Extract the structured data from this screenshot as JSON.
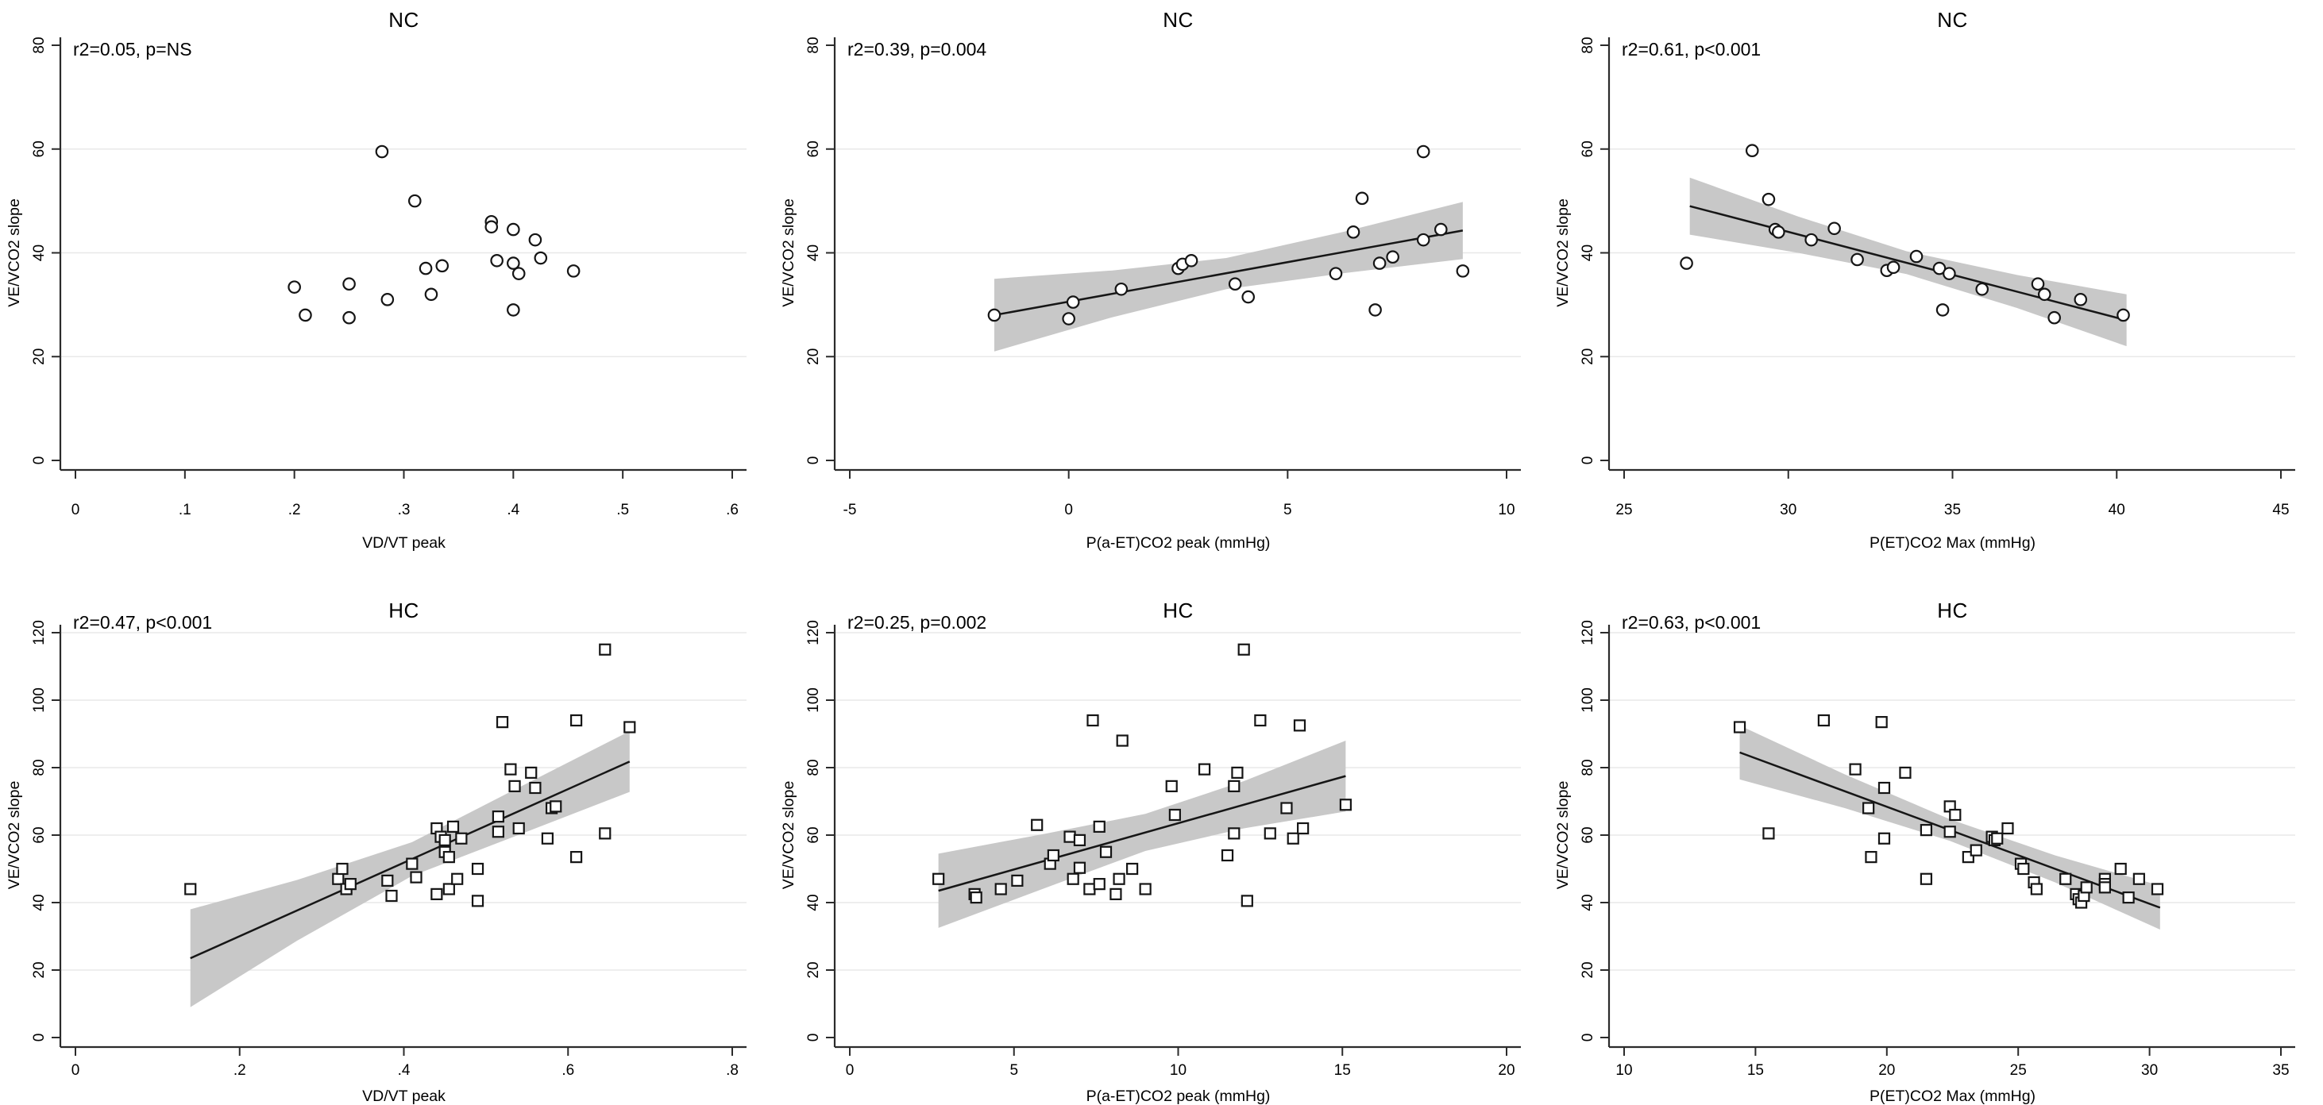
{
  "figure": {
    "description": "Six-panel scatter plot figure: VE/VCO2 slope vs ventilatory gas-exchange variables for NC (top row, circles) and HC (bottom row, squares) groups, with linear fit and 95% CI bands",
    "background": "#ffffff"
  },
  "colors": {
    "marker_stroke": "#151515",
    "marker_fill": "#ffffff",
    "grid": "#e8e8e8",
    "axis": "#2b2b2b",
    "fit_line": "#161616",
    "ci_band": "#c8c8c8",
    "text": "#000000"
  },
  "chart_data": [
    {
      "type": "scatter",
      "group": "NC",
      "title": "NC",
      "annotation": "r2=0.05, p=NS",
      "r_squared": 0.05,
      "p_value": "NS",
      "marker": "circle",
      "xlabel": "VD/VT peak",
      "ylabel": "VE/VCO2 slope",
      "xlim": [
        0,
        0.6
      ],
      "xtick_values": [
        0,
        0.1,
        0.2,
        0.3,
        0.4,
        0.5,
        0.6
      ],
      "xtick_labels": [
        "0",
        ".1",
        ".2",
        ".3",
        ".4",
        ".5",
        ".6"
      ],
      "ylim": [
        0,
        80
      ],
      "ytick_values": [
        0,
        20,
        40,
        60,
        80
      ],
      "ytick_labels": [
        "0",
        "20",
        "40",
        "60",
        "80"
      ],
      "grid_y": [
        20,
        40,
        60
      ],
      "points": [
        [
          0.2,
          33.4
        ],
        [
          0.21,
          28
        ],
        [
          0.25,
          34
        ],
        [
          0.25,
          27.5
        ],
        [
          0.28,
          59.5
        ],
        [
          0.285,
          31
        ],
        [
          0.31,
          50
        ],
        [
          0.32,
          37
        ],
        [
          0.325,
          32
        ],
        [
          0.335,
          37.5
        ],
        [
          0.38,
          46
        ],
        [
          0.38,
          45
        ],
        [
          0.385,
          38.5
        ],
        [
          0.4,
          44.5
        ],
        [
          0.4,
          38
        ],
        [
          0.405,
          36
        ],
        [
          0.4,
          29
        ],
        [
          0.42,
          42.5
        ],
        [
          0.425,
          39
        ],
        [
          0.455,
          36.5
        ]
      ],
      "fit_line": null,
      "ci_band": null
    },
    {
      "type": "scatter",
      "group": "NC",
      "title": "NC",
      "annotation": "r2=0.39, p=0.004",
      "r_squared": 0.39,
      "p_value": "0.004",
      "marker": "circle",
      "xlabel": "P(a-ET)CO2 peak (mmHg)",
      "ylabel": "VE/VCO2 slope",
      "xlim": [
        -5,
        10
      ],
      "xtick_values": [
        -5,
        0,
        5,
        10
      ],
      "xtick_labels": [
        "-5",
        "0",
        "5",
        "10"
      ],
      "ylim": [
        0,
        80
      ],
      "ytick_values": [
        0,
        20,
        40,
        60,
        80
      ],
      "ytick_labels": [
        "0",
        "20",
        "40",
        "60",
        "80"
      ],
      "grid_y": [
        20,
        40,
        60
      ],
      "points": [
        [
          -1.7,
          28
        ],
        [
          0.1,
          30.5
        ],
        [
          0.0,
          27.3
        ],
        [
          1.2,
          33
        ],
        [
          2.5,
          37
        ],
        [
          2.6,
          37.8
        ],
        [
          2.8,
          38.5
        ],
        [
          3.8,
          34
        ],
        [
          4.1,
          31.5
        ],
        [
          6.1,
          36
        ],
        [
          6.5,
          44
        ],
        [
          6.7,
          50.5
        ],
        [
          7.0,
          29
        ],
        [
          7.1,
          38
        ],
        [
          7.4,
          39.2
        ],
        [
          8.1,
          42.5
        ],
        [
          8.1,
          59.5
        ],
        [
          8.5,
          44.5
        ],
        [
          9.0,
          36.5
        ]
      ],
      "fit_line": {
        "x0": -1.7,
        "y0": 28,
        "x1": 9.0,
        "y1": 44.3
      },
      "ci_band": {
        "x": [
          -1.7,
          1.0,
          3.6,
          6.3,
          9.0
        ],
        "lower": [
          21,
          27.6,
          33,
          36.1,
          38.8
        ],
        "upper": [
          35,
          36.6,
          39,
          44.1,
          49.8
        ]
      }
    },
    {
      "type": "scatter",
      "group": "NC",
      "title": "NC",
      "annotation": "r2=0.61, p<0.001",
      "r_squared": 0.61,
      "p_value": "<0.001",
      "marker": "circle",
      "xlabel": "P(ET)CO2 Max (mmHg)",
      "ylabel": "VE/VCO2 slope",
      "xlim": [
        25,
        45
      ],
      "xtick_values": [
        25,
        30,
        35,
        40,
        45
      ],
      "xtick_labels": [
        "25",
        "30",
        "35",
        "40",
        "45"
      ],
      "ylim": [
        0,
        80
      ],
      "ytick_values": [
        0,
        20,
        40,
        60,
        80
      ],
      "ytick_labels": [
        "0",
        "20",
        "40",
        "60",
        "80"
      ],
      "grid_y": [
        20,
        40,
        60
      ],
      "points": [
        [
          26.9,
          38
        ],
        [
          28.9,
          59.7
        ],
        [
          29.4,
          50.3
        ],
        [
          29.6,
          44.5
        ],
        [
          29.7,
          44
        ],
        [
          30.7,
          42.5
        ],
        [
          31.4,
          44.7
        ],
        [
          32.1,
          38.7
        ],
        [
          33.0,
          36.6
        ],
        [
          33.2,
          37.2
        ],
        [
          33.9,
          39.3
        ],
        [
          34.6,
          37
        ],
        [
          34.9,
          36
        ],
        [
          34.7,
          29
        ],
        [
          35.9,
          33
        ],
        [
          37.6,
          34
        ],
        [
          37.8,
          32
        ],
        [
          38.1,
          27.5
        ],
        [
          38.9,
          31
        ],
        [
          40.2,
          28
        ]
      ],
      "fit_line": {
        "x0": 27.0,
        "y0": 49,
        "x1": 40.3,
        "y1": 27
      },
      "ci_band": {
        "x": [
          27.0,
          30.3,
          33.6,
          37.0,
          40.3
        ],
        "lower": [
          43.5,
          40,
          35.9,
          29.3,
          22
        ],
        "upper": [
          54.5,
          47,
          40.3,
          35.7,
          32
        ]
      }
    },
    {
      "type": "scatter",
      "group": "HC",
      "title": "HC",
      "annotation": "r2=0.47, p<0.001",
      "r_squared": 0.47,
      "p_value": "<0.001",
      "marker": "square",
      "xlabel": "VD/VT peak",
      "ylabel": "VE/VCO2 slope",
      "xlim": [
        0,
        0.8
      ],
      "xtick_values": [
        0,
        0.2,
        0.4,
        0.6,
        0.8
      ],
      "xtick_labels": [
        "0",
        ".2",
        ".4",
        ".6",
        ".8"
      ],
      "ylim": [
        0,
        120
      ],
      "ytick_values": [
        0,
        20,
        40,
        60,
        80,
        100,
        120
      ],
      "ytick_labels": [
        "0",
        "20",
        "40",
        "60",
        "80",
        "100",
        "120"
      ],
      "grid_y": [
        20,
        40,
        60,
        80,
        100,
        120
      ],
      "points": [
        [
          0.14,
          44
        ],
        [
          0.32,
          47
        ],
        [
          0.325,
          50
        ],
        [
          0.33,
          44
        ],
        [
          0.335,
          45.5
        ],
        [
          0.38,
          46.5
        ],
        [
          0.385,
          42
        ],
        [
          0.41,
          51.5
        ],
        [
          0.415,
          47.5
        ],
        [
          0.44,
          62
        ],
        [
          0.44,
          42.5
        ],
        [
          0.445,
          59.5
        ],
        [
          0.45,
          58.5
        ],
        [
          0.45,
          55
        ],
        [
          0.455,
          53.5
        ],
        [
          0.455,
          44
        ],
        [
          0.46,
          62.5
        ],
        [
          0.465,
          47
        ],
        [
          0.47,
          59
        ],
        [
          0.49,
          50
        ],
        [
          0.49,
          40.5
        ],
        [
          0.515,
          65.5
        ],
        [
          0.515,
          61
        ],
        [
          0.52,
          93.5
        ],
        [
          0.53,
          79.5
        ],
        [
          0.535,
          74.5
        ],
        [
          0.54,
          62
        ],
        [
          0.555,
          78.5
        ],
        [
          0.56,
          74
        ],
        [
          0.575,
          59
        ],
        [
          0.58,
          68
        ],
        [
          0.585,
          68.5
        ],
        [
          0.61,
          53.5
        ],
        [
          0.61,
          94
        ],
        [
          0.645,
          115
        ],
        [
          0.645,
          60.5
        ],
        [
          0.675,
          92
        ]
      ],
      "fit_line": {
        "x0": 0.14,
        "y0": 23.5,
        "x1": 0.675,
        "y1": 81.8
      },
      "ci_band": {
        "x": [
          0.14,
          0.27,
          0.41,
          0.54,
          0.675
        ],
        "lower": [
          9,
          28.7,
          47.9,
          60.1,
          72.8
        ],
        "upper": [
          38,
          46.7,
          57.9,
          74.1,
          90.8
        ]
      }
    },
    {
      "type": "scatter",
      "group": "HC",
      "title": "HC",
      "annotation": "r2=0.25, p=0.002",
      "r_squared": 0.25,
      "p_value": "0.002",
      "marker": "square",
      "xlabel": "P(a-ET)CO2 peak (mmHg)",
      "ylabel": "VE/VCO2 slope",
      "xlim": [
        0,
        20
      ],
      "xtick_values": [
        0,
        5,
        10,
        15,
        20
      ],
      "xtick_labels": [
        "0",
        "5",
        "10",
        "15",
        "20"
      ],
      "ylim": [
        0,
        120
      ],
      "ytick_values": [
        0,
        20,
        40,
        60,
        80,
        100,
        120
      ],
      "ytick_labels": [
        "0",
        "20",
        "40",
        "60",
        "80",
        "100",
        "120"
      ],
      "grid_y": [
        20,
        40,
        60,
        80,
        100,
        120
      ],
      "points": [
        [
          2.7,
          47
        ],
        [
          3.8,
          42.5
        ],
        [
          3.85,
          41.5
        ],
        [
          4.6,
          44
        ],
        [
          5.1,
          46.5
        ],
        [
          5.7,
          63
        ],
        [
          6.1,
          51.5
        ],
        [
          6.2,
          54
        ],
        [
          6.7,
          59.5
        ],
        [
          6.8,
          47
        ],
        [
          7.0,
          58.5
        ],
        [
          7.0,
          50.3
        ],
        [
          7.3,
          44
        ],
        [
          7.4,
          94
        ],
        [
          7.6,
          45.5
        ],
        [
          7.6,
          62.5
        ],
        [
          7.8,
          55
        ],
        [
          8.1,
          42.5
        ],
        [
          8.2,
          47
        ],
        [
          8.3,
          88
        ],
        [
          8.6,
          50
        ],
        [
          9.0,
          44
        ],
        [
          9.8,
          74.5
        ],
        [
          9.9,
          66
        ],
        [
          10.8,
          79.5
        ],
        [
          11.5,
          54
        ],
        [
          11.7,
          74.5
        ],
        [
          11.8,
          78.5
        ],
        [
          11.7,
          60.5
        ],
        [
          12.0,
          115
        ],
        [
          12.1,
          40.5
        ],
        [
          12.5,
          94
        ],
        [
          12.8,
          60.5
        ],
        [
          13.3,
          68
        ],
        [
          13.5,
          59
        ],
        [
          13.7,
          92.5
        ],
        [
          13.8,
          62
        ],
        [
          15.1,
          69
        ]
      ],
      "fit_line": {
        "x0": 2.7,
        "y0": 43.5,
        "x1": 15.1,
        "y1": 77.5
      },
      "ci_band": {
        "x": [
          2.7,
          6.0,
          9.0,
          12.0,
          15.1
        ],
        "lower": [
          32.5,
          44.5,
          55.3,
          62,
          67
        ],
        "upper": [
          54.5,
          60.5,
          66.3,
          76,
          88
        ]
      }
    },
    {
      "type": "scatter",
      "group": "HC",
      "title": "HC",
      "annotation": "r2=0.63, p<0.001",
      "r_squared": 0.63,
      "p_value": "<0.001",
      "marker": "square",
      "xlabel": "P(ET)CO2 Max (mmHg)",
      "ylabel": "VE/VCO2 slope",
      "xlim": [
        10,
        35
      ],
      "xtick_values": [
        10,
        15,
        20,
        25,
        30,
        35
      ],
      "xtick_labels": [
        "10",
        "15",
        "20",
        "25",
        "30",
        "35"
      ],
      "ylim": [
        0,
        120
      ],
      "ytick_values": [
        0,
        20,
        40,
        60,
        80,
        100,
        120
      ],
      "ytick_labels": [
        "0",
        "20",
        "40",
        "60",
        "80",
        "100",
        "120"
      ],
      "grid_y": [
        20,
        40,
        60,
        80,
        100,
        120
      ],
      "points": [
        [
          14.4,
          92
        ],
        [
          15.5,
          60.5
        ],
        [
          17.6,
          94
        ],
        [
          18.8,
          79.5
        ],
        [
          19.3,
          68
        ],
        [
          19.4,
          53.5
        ],
        [
          19.8,
          93.5
        ],
        [
          19.9,
          74
        ],
        [
          19.9,
          59
        ],
        [
          20.7,
          78.5
        ],
        [
          21.5,
          61.5
        ],
        [
          21.5,
          47
        ],
        [
          22.4,
          68.5
        ],
        [
          22.4,
          61
        ],
        [
          22.6,
          66
        ],
        [
          23.1,
          53.5
        ],
        [
          23.4,
          55.5
        ],
        [
          24.0,
          59.5
        ],
        [
          24.1,
          58.5
        ],
        [
          24.2,
          59
        ],
        [
          24.6,
          62
        ],
        [
          25.1,
          51.5
        ],
        [
          25.2,
          50
        ],
        [
          25.6,
          46
        ],
        [
          25.7,
          44
        ],
        [
          26.8,
          47
        ],
        [
          27.2,
          42.5
        ],
        [
          27.3,
          41
        ],
        [
          27.4,
          40
        ],
        [
          27.5,
          42
        ],
        [
          27.6,
          44.5
        ],
        [
          28.3,
          47
        ],
        [
          28.3,
          45.5
        ],
        [
          28.3,
          44.5
        ],
        [
          28.9,
          50
        ],
        [
          29.2,
          41.5
        ],
        [
          29.6,
          47
        ],
        [
          30.3,
          44
        ]
      ],
      "fit_line": {
        "x0": 14.4,
        "y0": 84.5,
        "x1": 30.4,
        "y1": 38.5
      },
      "ci_band": {
        "x": [
          14.4,
          18.4,
          22.4,
          26.4,
          30.4
        ],
        "lower": [
          76.5,
          68,
          58.3,
          46,
          32
        ],
        "upper": [
          92.5,
          78,
          64.7,
          54,
          45
        ]
      }
    }
  ]
}
